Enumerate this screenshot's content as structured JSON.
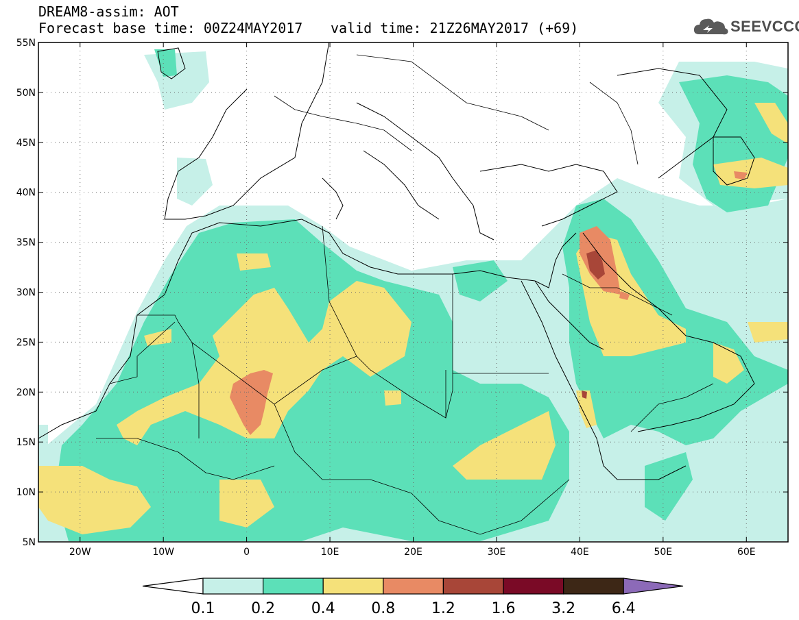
{
  "header": {
    "model_line": "DREAM8-assim: AOT",
    "base_time_line": "Forecast base time: 00Z24MAY2017",
    "valid_time_line": "valid time: 21Z26MAY2017 (+69)"
  },
  "logo": {
    "text": "SEEVCCC",
    "icon": "cloud-icon"
  },
  "map": {
    "lon_range": [
      -25,
      65
    ],
    "lat_range": [
      5,
      55
    ],
    "lat_ticks": [
      {
        "value": 55,
        "label": "55N"
      },
      {
        "value": 50,
        "label": "50N"
      },
      {
        "value": 45,
        "label": "45N"
      },
      {
        "value": 40,
        "label": "40N"
      },
      {
        "value": 35,
        "label": "35N"
      },
      {
        "value": 30,
        "label": "30N"
      },
      {
        "value": 25,
        "label": "25N"
      },
      {
        "value": 20,
        "label": "20N"
      },
      {
        "value": 15,
        "label": "15N"
      },
      {
        "value": 10,
        "label": "10N"
      },
      {
        "value": 5,
        "label": "5N"
      }
    ],
    "lon_ticks": [
      {
        "value": -20,
        "label": "20W"
      },
      {
        "value": -10,
        "label": "10W"
      },
      {
        "value": 0,
        "label": "0"
      },
      {
        "value": 10,
        "label": "10E"
      },
      {
        "value": 20,
        "label": "20E"
      },
      {
        "value": 30,
        "label": "30E"
      },
      {
        "value": 40,
        "label": "40E"
      },
      {
        "value": 50,
        "label": "50E"
      },
      {
        "value": 60,
        "label": "60E"
      }
    ],
    "grid": "dotted"
  },
  "colorbar": {
    "levels": [
      "0.1",
      "0.2",
      "0.4",
      "0.8",
      "1.2",
      "1.6",
      "3.2",
      "6.4"
    ],
    "colors": [
      "#ffffff",
      "#c6f0e8",
      "#5ce0b8",
      "#f5e17a",
      "#e88a64",
      "#a84638",
      "#7a0a26",
      "#3d2716",
      "#8c6ab8"
    ]
  }
}
